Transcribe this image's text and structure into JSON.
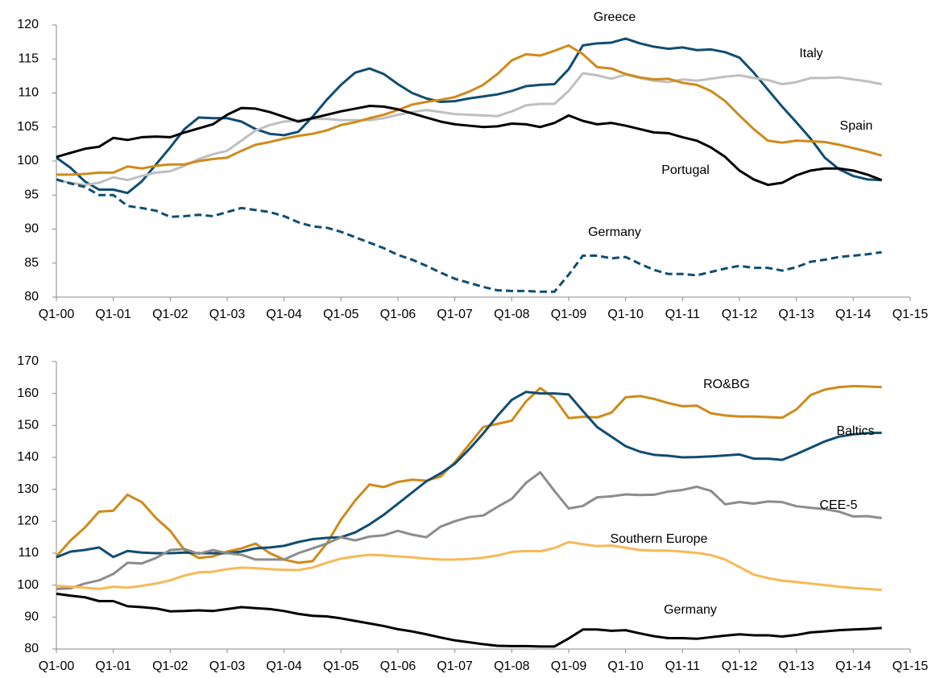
{
  "chart_data": [
    {
      "type": "line",
      "x": [
        2000,
        2000.25,
        2000.5,
        2000.75,
        2001,
        2001.25,
        2001.5,
        2001.75,
        2002,
        2002.25,
        2002.5,
        2002.75,
        2003,
        2003.25,
        2003.5,
        2003.75,
        2004,
        2004.25,
        2004.5,
        2004.75,
        2005,
        2005.25,
        2005.5,
        2005.75,
        2006,
        2006.25,
        2006.5,
        2006.75,
        2007,
        2007.25,
        2007.5,
        2007.75,
        2008,
        2008.25,
        2008.5,
        2008.75,
        2009,
        2009.25,
        2009.5,
        2009.75,
        2010,
        2010.25,
        2010.5,
        2010.75,
        2011,
        2011.25,
        2011.5,
        2011.75,
        2012,
        2012.25,
        2012.5,
        2012.75,
        2013,
        2013.25,
        2013.5,
        2013.75,
        2014,
        2014.25,
        2014.5
      ],
      "xlim": [
        2000,
        2015
      ],
      "xticks": [
        {
          "value": 2000,
          "label": "Q1-00"
        },
        {
          "value": 2001,
          "label": "Q1-01"
        },
        {
          "value": 2002,
          "label": "Q1-02"
        },
        {
          "value": 2003,
          "label": "Q1-03"
        },
        {
          "value": 2004,
          "label": "Q1-04"
        },
        {
          "value": 2005,
          "label": "Q1-05"
        },
        {
          "value": 2006,
          "label": "Q1-06"
        },
        {
          "value": 2007,
          "label": "Q1-07"
        },
        {
          "value": 2008,
          "label": "Q1-08"
        },
        {
          "value": 2009,
          "label": "Q1-09"
        },
        {
          "value": 2010,
          "label": "Q1-10"
        },
        {
          "value": 2011,
          "label": "Q1-11"
        },
        {
          "value": 2012,
          "label": "Q1-12"
        },
        {
          "value": 2013,
          "label": "Q1-13"
        },
        {
          "value": 2014,
          "label": "Q1-14"
        },
        {
          "value": 2015,
          "label": "Q1-15"
        }
      ],
      "ylim": [
        80,
        120
      ],
      "yticks": [
        80,
        85,
        90,
        95,
        100,
        105,
        110,
        115,
        120
      ],
      "series": [
        {
          "name": "Greece",
          "color": "#0f4d72",
          "values": [
            100.5,
            99,
            97,
            95.8,
            95.8,
            95.3,
            97,
            99.5,
            102,
            104.7,
            106.4,
            106.3,
            106.3,
            105.8,
            104.7,
            104,
            103.8,
            104.3,
            106.5,
            109,
            111.2,
            113,
            113.6,
            112.8,
            111.3,
            110,
            109.2,
            108.7,
            108.8,
            109.2,
            109.5,
            109.8,
            110.3,
            111,
            111.2,
            111.3,
            113.5,
            117,
            117.3,
            117.4,
            118,
            117.3,
            116.8,
            116.5,
            116.7,
            116.3,
            116.4,
            116,
            115.2,
            113,
            110.5,
            108,
            105.7,
            103.3,
            100.5,
            98.8,
            97.8,
            97.3,
            97.2
          ]
        },
        {
          "name": "Italy",
          "color": "#bfbfbf",
          "values": [
            97.2,
            96.8,
            96.5,
            96.8,
            97.6,
            97.2,
            97.8,
            98.3,
            98.5,
            99.3,
            100.3,
            101,
            101.5,
            103,
            104.5,
            105.3,
            105.8,
            106,
            106.2,
            106.2,
            106,
            106,
            106,
            106.3,
            106.8,
            107.2,
            107.5,
            107.2,
            106.9,
            106.8,
            106.7,
            106.6,
            107.3,
            108.2,
            108.4,
            108.4,
            110.3,
            112.9,
            112.6,
            112.1,
            112.7,
            112.2,
            111.8,
            111.6,
            112,
            111.8,
            112.1,
            112.4,
            112.6,
            112.2,
            111.9,
            111.3,
            111.6,
            112.2,
            112.2,
            112.3,
            112,
            111.7,
            111.3
          ]
        },
        {
          "name": "Spain",
          "color": "#d08a19",
          "values": [
            98,
            98,
            98.1,
            98.3,
            98.3,
            99.2,
            98.9,
            99.3,
            99.5,
            99.5,
            100,
            100.3,
            100.5,
            101.5,
            102.4,
            102.8,
            103.3,
            103.7,
            104,
            104.5,
            105.3,
            105.7,
            106.3,
            106.8,
            107.5,
            108.3,
            108.7,
            109,
            109.4,
            110.2,
            111.2,
            112.8,
            114.8,
            115.7,
            115.5,
            116.2,
            117,
            115.7,
            113.8,
            113.6,
            112.8,
            112.3,
            112,
            112.1,
            111.5,
            111.2,
            110.3,
            108.8,
            106.7,
            104.7,
            103,
            102.7,
            103,
            102.9,
            102.8,
            102.4,
            101.9,
            101.4,
            100.8
          ]
        },
        {
          "name": "Portugal",
          "color": "#000000",
          "values": [
            100.6,
            101.2,
            101.8,
            102.1,
            103.4,
            103.1,
            103.5,
            103.6,
            103.5,
            104.2,
            104.8,
            105.4,
            106.8,
            107.8,
            107.7,
            107.2,
            106.5,
            105.8,
            106.3,
            106.8,
            107.3,
            107.7,
            108.1,
            108,
            107.6,
            107,
            106.4,
            105.8,
            105.4,
            105.2,
            105,
            105.1,
            105.5,
            105.4,
            105,
            105.6,
            106.7,
            105.9,
            105.4,
            105.6,
            105.2,
            104.7,
            104.2,
            104.1,
            103.5,
            103,
            102,
            100.6,
            98.6,
            97.3,
            96.5,
            96.8,
            97.9,
            98.6,
            98.9,
            98.9,
            98.6,
            98,
            97.2
          ]
        },
        {
          "name": "Germany",
          "color": "#0f4d72",
          "dashed": true,
          "values": [
            97.3,
            96.7,
            96.2,
            95,
            95,
            93.4,
            93.1,
            92.7,
            91.8,
            91.9,
            92.1,
            91.9,
            92.5,
            93.1,
            92.8,
            92.5,
            91.9,
            91,
            90.4,
            90.2,
            89.6,
            88.8,
            88,
            87.2,
            86.2,
            85.5,
            84.6,
            83.6,
            82.7,
            82.1,
            81.5,
            81,
            80.9,
            80.9,
            80.8,
            80.8,
            83.3,
            86.1,
            86.1,
            85.7,
            85.9,
            84.9,
            84,
            83.4,
            83.4,
            83.2,
            83.7,
            84.2,
            84.6,
            84.3,
            84.3,
            83.9,
            84.4,
            85.2,
            85.5,
            85.9,
            86.1,
            86.3,
            86.6
          ]
        }
      ]
    },
    {
      "type": "line",
      "x": [
        2000,
        2000.25,
        2000.5,
        2000.75,
        2001,
        2001.25,
        2001.5,
        2001.75,
        2002,
        2002.25,
        2002.5,
        2002.75,
        2003,
        2003.25,
        2003.5,
        2003.75,
        2004,
        2004.25,
        2004.5,
        2004.75,
        2005,
        2005.25,
        2005.5,
        2005.75,
        2006,
        2006.25,
        2006.5,
        2006.75,
        2007,
        2007.25,
        2007.5,
        2007.75,
        2008,
        2008.25,
        2008.5,
        2008.75,
        2009,
        2009.25,
        2009.5,
        2009.75,
        2010,
        2010.25,
        2010.5,
        2010.75,
        2011,
        2011.25,
        2011.5,
        2011.75,
        2012,
        2012.25,
        2012.5,
        2012.75,
        2013,
        2013.25,
        2013.5,
        2013.75,
        2014,
        2014.25,
        2014.5
      ],
      "xlim": [
        2000,
        2015
      ],
      "xticks": [
        {
          "value": 2000,
          "label": "Q1-00"
        },
        {
          "value": 2001,
          "label": "Q1-01"
        },
        {
          "value": 2002,
          "label": "Q1-02"
        },
        {
          "value": 2003,
          "label": "Q1-03"
        },
        {
          "value": 2004,
          "label": "Q1-04"
        },
        {
          "value": 2005,
          "label": "Q1-05"
        },
        {
          "value": 2006,
          "label": "Q1-06"
        },
        {
          "value": 2007,
          "label": "Q1-07"
        },
        {
          "value": 2008,
          "label": "Q1-08"
        },
        {
          "value": 2009,
          "label": "Q1-09"
        },
        {
          "value": 2010,
          "label": "Q1-10"
        },
        {
          "value": 2011,
          "label": "Q1-11"
        },
        {
          "value": 2012,
          "label": "Q1-12"
        },
        {
          "value": 2013,
          "label": "Q1-13"
        },
        {
          "value": 2014,
          "label": "Q1-14"
        },
        {
          "value": 2015,
          "label": "Q1-15"
        }
      ],
      "ylim": [
        80,
        170
      ],
      "yticks": [
        80,
        90,
        100,
        110,
        120,
        130,
        140,
        150,
        160,
        170
      ],
      "series": [
        {
          "name": "RO&BG",
          "color": "#d08a19",
          "values": [
            109,
            114,
            118,
            123,
            123.3,
            128.3,
            126,
            121,
            117,
            111,
            108.5,
            109,
            110.5,
            111.5,
            113,
            110,
            108,
            107,
            107.5,
            113,
            120.5,
            126.5,
            131.5,
            130.7,
            132.3,
            133,
            132.7,
            134,
            138.5,
            144,
            149.5,
            150.5,
            151.5,
            157.5,
            161.7,
            158.5,
            152.3,
            152.7,
            152.5,
            154,
            158.8,
            159.2,
            158.3,
            157,
            156,
            156.2,
            153.8,
            153.1,
            152.8,
            152.8,
            152.6,
            152.4,
            155,
            159.5,
            161.2,
            162,
            162.3,
            162.2,
            162
          ]
        },
        {
          "name": "Baltics",
          "color": "#0f4d72",
          "values": [
            108.7,
            110.5,
            111,
            111.8,
            108.8,
            110.7,
            110.2,
            110,
            110,
            110.2,
            110,
            110,
            110,
            110.5,
            111.5,
            111.8,
            112.3,
            113.5,
            114.4,
            114.8,
            115,
            116.5,
            119,
            122,
            125.5,
            129,
            132.5,
            135,
            138,
            142.5,
            147.5,
            153,
            158,
            160.5,
            160,
            160,
            159.7,
            154.5,
            149.5,
            146.5,
            143.5,
            141.8,
            140.8,
            140.5,
            140,
            140.1,
            140.3,
            140.6,
            140.9,
            139.6,
            139.6,
            139.2,
            141,
            143,
            145,
            146.5,
            147.2,
            147.6,
            147.7
          ]
        },
        {
          "name": "CEE-5",
          "color": "#8c8c8c",
          "values": [
            98.8,
            99,
            100.5,
            101.5,
            103.5,
            107,
            106.8,
            108.5,
            111,
            111.3,
            109.8,
            111,
            110,
            109.5,
            108,
            108,
            108,
            110,
            111.5,
            113,
            115,
            114,
            115.2,
            115.6,
            117,
            115.8,
            115,
            118.3,
            120,
            121.3,
            121.8,
            124.5,
            127,
            132,
            135.3,
            129.5,
            124,
            124.8,
            127.5,
            127.8,
            128.4,
            128.2,
            128.3,
            129.3,
            129.8,
            130.8,
            129.5,
            125.3,
            126,
            125.5,
            126.2,
            126,
            124.7,
            124.2,
            123.8,
            123,
            121.5,
            121.6,
            121
          ]
        },
        {
          "name": "Southern Europe",
          "color": "#f7b955",
          "values": [
            99.8,
            99.5,
            99.2,
            98.8,
            99.5,
            99.2,
            99.8,
            100.5,
            101.5,
            103,
            104,
            104.2,
            105,
            105.5,
            105.3,
            105,
            104.8,
            104.7,
            105.5,
            107,
            108.3,
            109,
            109.5,
            109.3,
            109,
            108.7,
            108.3,
            108,
            108,
            108.2,
            108.6,
            109.3,
            110.4,
            110.7,
            110.6,
            111.6,
            113.5,
            112.8,
            112.2,
            112.4,
            111.7,
            111,
            110.8,
            110.8,
            110.5,
            110.1,
            109.4,
            108,
            105.7,
            103.3,
            102.2,
            101.4,
            101,
            100.5,
            100,
            99.5,
            99.1,
            98.8,
            98.5
          ]
        },
        {
          "name": "Germany",
          "color": "#000000",
          "values": [
            97.3,
            96.7,
            96.2,
            95,
            95,
            93.4,
            93.1,
            92.7,
            91.8,
            91.9,
            92.1,
            91.9,
            92.5,
            93.1,
            92.8,
            92.5,
            91.9,
            91,
            90.4,
            90.2,
            89.6,
            88.8,
            88,
            87.2,
            86.2,
            85.5,
            84.6,
            83.6,
            82.7,
            82.1,
            81.5,
            81,
            80.9,
            80.9,
            80.8,
            80.8,
            83.3,
            86.1,
            86.1,
            85.7,
            85.9,
            84.9,
            84,
            83.4,
            83.4,
            83.2,
            83.7,
            84.2,
            84.6,
            84.3,
            84.3,
            83.9,
            84.4,
            85.2,
            85.5,
            85.9,
            86.1,
            86.3,
            86.6
          ]
        }
      ]
    }
  ]
}
